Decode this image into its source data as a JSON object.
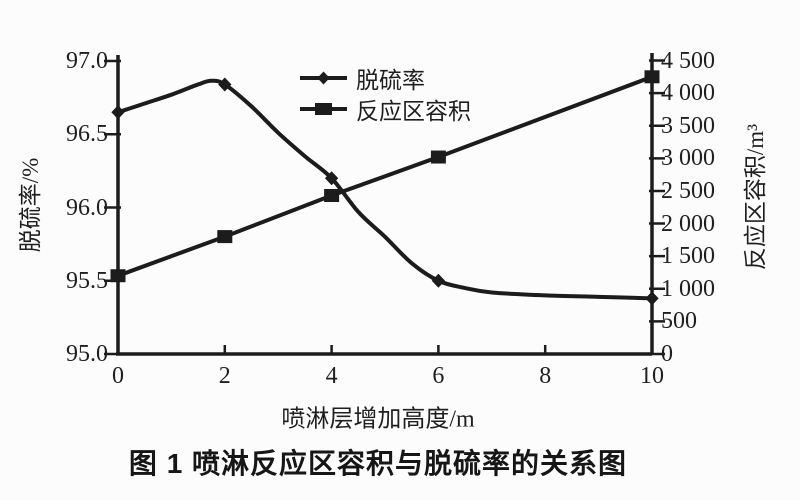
{
  "figure": {
    "caption": "图 1  喷淋反应区容积与脱硫率的关系图"
  },
  "chart_data": {
    "type": "line",
    "title": "",
    "xlabel": "喷淋层增加高度/m",
    "ylabel_left": "脱硫率/%",
    "ylabel_right": "反应区容积/m³",
    "xlim": [
      0,
      10
    ],
    "ylim_left": [
      95.0,
      97.0
    ],
    "ylim_right": [
      0,
      4500
    ],
    "grid": false,
    "legend_position": "inside top center",
    "x_ticks": [
      {
        "label": "0",
        "value": 0
      },
      {
        "label": "2",
        "value": 2
      },
      {
        "label": "4",
        "value": 4
      },
      {
        "label": "6",
        "value": 6
      },
      {
        "label": "8",
        "value": 8
      },
      {
        "label": "10",
        "value": 10
      }
    ],
    "left_ticks": [
      {
        "label": "97.0",
        "value": 97.0
      },
      {
        "label": "96.5",
        "value": 96.5
      },
      {
        "label": "96.0",
        "value": 96.0
      },
      {
        "label": "95.5",
        "value": 95.5
      },
      {
        "label": "95.0",
        "value": 95.0
      }
    ],
    "right_ticks": [
      {
        "label": "4 500",
        "value": 4500
      },
      {
        "label": "4 000",
        "value": 4000
      },
      {
        "label": "3 500",
        "value": 3500
      },
      {
        "label": "3 000",
        "value": 3000
      },
      {
        "label": "2 500",
        "value": 2500
      },
      {
        "label": "2 000",
        "value": 2000
      },
      {
        "label": "1 500",
        "value": 1500
      },
      {
        "label": "1 000",
        "value": 1000
      },
      {
        "label": "500",
        "value": 500
      },
      {
        "label": "0",
        "value": 0
      }
    ],
    "series": [
      {
        "name": "脱硫率",
        "axis": "left",
        "marker": "diamond",
        "x": [
          0,
          2,
          4,
          6,
          10
        ],
        "values": [
          96.65,
          96.84,
          96.2,
          95.5,
          95.38
        ],
        "curve": [
          [
            0,
            96.65
          ],
          [
            0.5,
            96.71
          ],
          [
            1,
            96.77
          ],
          [
            1.5,
            96.84
          ],
          [
            1.75,
            96.865
          ],
          [
            2,
            96.84
          ],
          [
            2.5,
            96.69
          ],
          [
            3,
            96.51
          ],
          [
            3.5,
            96.35
          ],
          [
            4,
            96.2
          ],
          [
            4.5,
            95.97
          ],
          [
            5,
            95.8
          ],
          [
            5.5,
            95.62
          ],
          [
            6,
            95.5
          ],
          [
            6.5,
            95.45
          ],
          [
            7,
            95.42
          ],
          [
            8,
            95.4
          ],
          [
            9,
            95.39
          ],
          [
            10,
            95.38
          ]
        ]
      },
      {
        "name": "反应区容积",
        "axis": "right",
        "marker": "square",
        "x": [
          0,
          2,
          4,
          6,
          10
        ],
        "values": [
          1200,
          1800,
          2430,
          3020,
          4250
        ]
      }
    ]
  },
  "legend": {
    "items": [
      {
        "label": "脱硫率",
        "marker": "diamond"
      },
      {
        "label": "反应区容积",
        "marker": "square"
      }
    ]
  },
  "colors": {
    "ink": "#1c1c1c",
    "text": "#1f1f1f",
    "background": "#fcfcfc"
  }
}
